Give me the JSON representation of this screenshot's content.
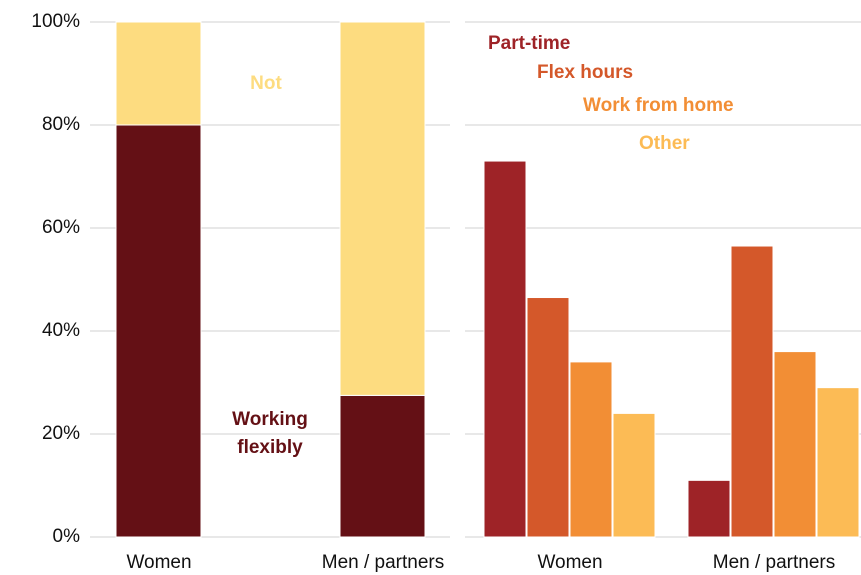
{
  "chart_data": [
    {
      "type": "bar",
      "stacked": true,
      "categories": [
        "Women",
        "Men / partners"
      ],
      "series": [
        {
          "name": "Working flexibly",
          "color": "#641015",
          "values": [
            80,
            27.5
          ]
        },
        {
          "name": "Not",
          "color": "#fddc80",
          "values": [
            20,
            72.5
          ]
        }
      ],
      "ylim": [
        0,
        100
      ],
      "yticks": [
        {
          "value": 0,
          "label": "0%"
        },
        {
          "value": 20,
          "label": "20%"
        },
        {
          "value": 40,
          "label": "40%"
        },
        {
          "value": 60,
          "label": "60%"
        },
        {
          "value": 80,
          "label": "80%"
        },
        {
          "value": 100,
          "label": "100%"
        }
      ],
      "grid": true
    },
    {
      "type": "bar",
      "stacked": false,
      "categories": [
        "Women",
        "Men / partners"
      ],
      "series": [
        {
          "name": "Part-time",
          "color": "#9e2327",
          "values": [
            73,
            11
          ]
        },
        {
          "name": "Flex hours",
          "color": "#d4582a",
          "values": [
            46.5,
            56.5
          ]
        },
        {
          "name": "Work from home",
          "color": "#f28e35",
          "values": [
            34,
            36
          ]
        },
        {
          "name": "Other",
          "color": "#fcbb55",
          "values": [
            24,
            29
          ]
        }
      ],
      "ylim": [
        0,
        100
      ],
      "yticks": [
        0,
        20,
        40,
        60,
        80,
        100
      ],
      "grid": true
    }
  ]
}
